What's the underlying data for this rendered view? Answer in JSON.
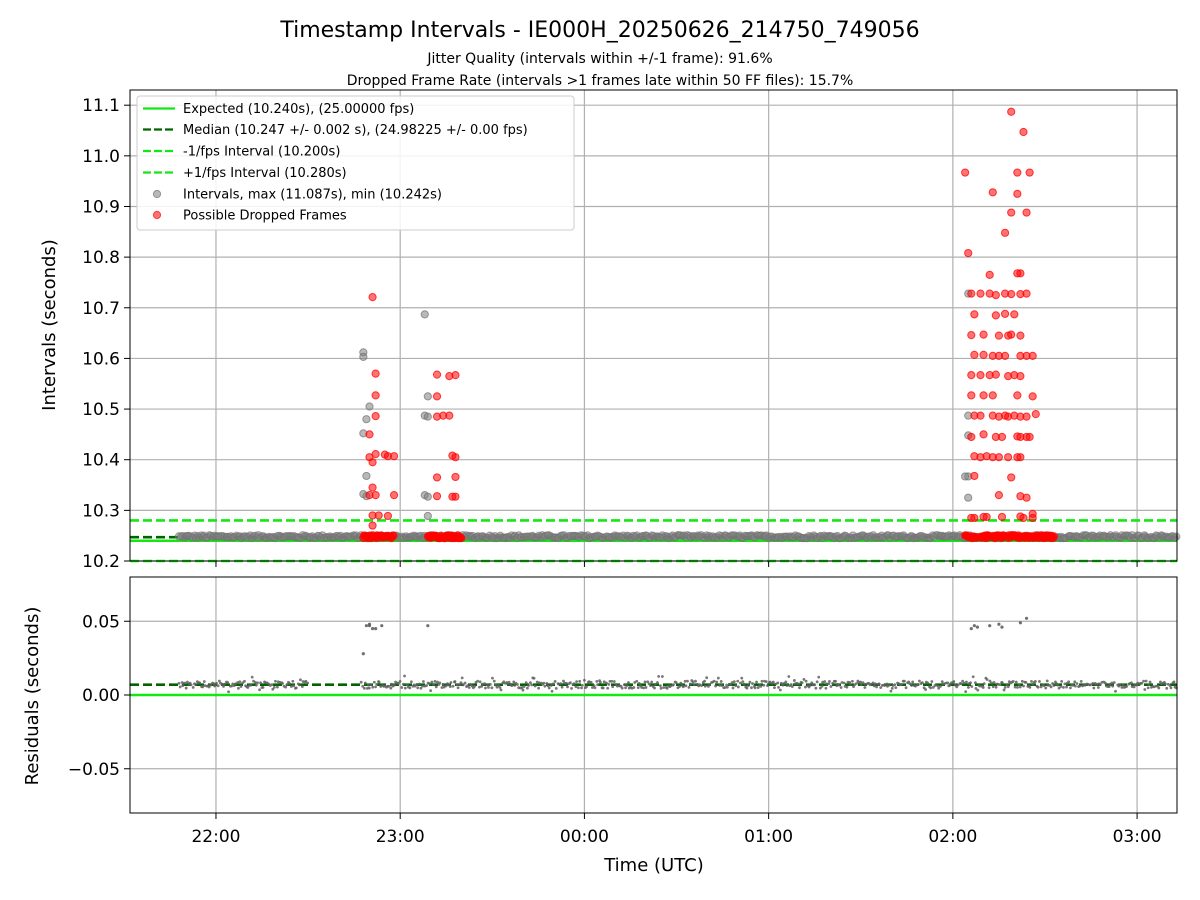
{
  "title": "Timestamp Intervals - IE000H_20250626_214750_749056",
  "subtitles": [
    "Jitter Quality (intervals within +/-1 frame): 91.6%",
    "Dropped Frame Rate (intervals >1 frames late within 50 FF files): 15.7%"
  ],
  "chart_data": [
    {
      "type": "scatter",
      "ylabel": "Intervals (seconds)",
      "ylim": [
        10.2,
        11.13
      ],
      "yticks": [
        10.2,
        10.3,
        10.4,
        10.5,
        10.6,
        10.7,
        10.8,
        10.9,
        11.0,
        11.1
      ],
      "ytick_labels": [
        "10.2",
        "10.3",
        "10.4",
        "10.5",
        "10.6",
        "10.7",
        "10.8",
        "10.9",
        "11.0",
        "11.1"
      ],
      "grid": true,
      "legend_position": "top-left",
      "reference_lines": [
        {
          "name": "Expected (10.240s), (25.00000 fps)",
          "y": 10.24,
          "style": "solid",
          "color": "#14e814"
        },
        {
          "name": "Median (10.247 +/- 0.002 s), (24.98225 +/- 0.00 fps)",
          "y": 10.247,
          "style": "dashed",
          "color": "#006400"
        },
        {
          "name": "-1/fps Interval (10.200s)",
          "y": 10.2,
          "style": "dashed",
          "color": "#14e814"
        },
        {
          "name": "+1/fps Interval (10.280s)",
          "y": 10.28,
          "style": "dashed",
          "color": "#14e814"
        }
      ],
      "series": [
        {
          "name": "Intervals, max (11.087s), min (10.242s)",
          "color": "#808080",
          "points": [
            [
              "22:48",
              10.612
            ],
            [
              "22:48",
              10.603
            ],
            [
              "22:48",
              10.452
            ],
            [
              "22:49",
              10.48
            ],
            [
              "22:49",
              10.368
            ],
            [
              "22:48",
              10.332
            ],
            [
              "22:49",
              10.328
            ],
            [
              "22:50",
              10.505
            ],
            [
              "23:08",
              10.687
            ],
            [
              "23:08",
              10.487
            ],
            [
              "23:09",
              10.485
            ],
            [
              "23:09",
              10.525
            ],
            [
              "23:08",
              10.33
            ],
            [
              "23:09",
              10.327
            ],
            [
              "23:09",
              10.289
            ],
            [
              "02:05",
              10.728
            ],
            [
              "02:05",
              10.487
            ],
            [
              "02:05",
              10.448
            ],
            [
              "02:05",
              10.367
            ],
            [
              "02:04",
              10.367
            ],
            [
              "02:05",
              10.325
            ]
          ]
        },
        {
          "name": "Possible Dropped Frames",
          "color": "#ff0000",
          "points": [
            [
              "22:51",
              10.721
            ],
            [
              "22:52",
              10.57
            ],
            [
              "22:52",
              10.527
            ],
            [
              "22:52",
              10.486
            ],
            [
              "22:50",
              10.45
            ],
            [
              "22:50",
              10.405
            ],
            [
              "22:51",
              10.395
            ],
            [
              "22:52",
              10.411
            ],
            [
              "22:55",
              10.41
            ],
            [
              "22:56",
              10.407
            ],
            [
              "22:58",
              10.407
            ],
            [
              "22:51",
              10.345
            ],
            [
              "22:50",
              10.33
            ],
            [
              "22:52",
              10.33
            ],
            [
              "22:58",
              10.33
            ],
            [
              "22:51",
              10.29
            ],
            [
              "22:53",
              10.29
            ],
            [
              "22:56",
              10.289
            ],
            [
              "22:51",
              10.27
            ],
            [
              "23:12",
              10.568
            ],
            [
              "23:16",
              10.565
            ],
            [
              "23:18",
              10.567
            ],
            [
              "23:12",
              10.525
            ],
            [
              "23:12",
              10.485
            ],
            [
              "23:14",
              10.487
            ],
            [
              "23:16",
              10.487
            ],
            [
              "23:17",
              10.408
            ],
            [
              "23:18",
              10.405
            ],
            [
              "23:12",
              10.365
            ],
            [
              "23:18",
              10.366
            ],
            [
              "23:12",
              10.328
            ],
            [
              "23:17",
              10.327
            ],
            [
              "23:18",
              10.327
            ],
            [
              "02:04",
              10.967
            ],
            [
              "02:05",
              10.808
            ],
            [
              "02:06",
              10.728
            ],
            [
              "02:07",
              10.687
            ],
            [
              "02:06",
              10.646
            ],
            [
              "02:07",
              10.607
            ],
            [
              "02:06",
              10.567
            ],
            [
              "02:06",
              10.527
            ],
            [
              "02:07",
              10.487
            ],
            [
              "02:06",
              10.445
            ],
            [
              "02:07",
              10.407
            ],
            [
              "02:07",
              10.368
            ],
            [
              "02:06",
              10.285
            ],
            [
              "02:07",
              10.285
            ],
            [
              "02:09",
              10.728
            ],
            [
              "02:10",
              10.647
            ],
            [
              "02:10",
              10.607
            ],
            [
              "02:09",
              10.567
            ],
            [
              "02:10",
              10.527
            ],
            [
              "02:09",
              10.487
            ],
            [
              "02:10",
              10.45
            ],
            [
              "02:11",
              10.407
            ],
            [
              "02:09",
              10.405
            ],
            [
              "02:10",
              10.287
            ],
            [
              "02:11",
              10.287
            ],
            [
              "02:12",
              10.765
            ],
            [
              "02:12",
              10.728
            ],
            [
              "02:13",
              10.605
            ],
            [
              "02:12",
              10.567
            ],
            [
              "02:13",
              10.527
            ],
            [
              "02:13",
              10.487
            ],
            [
              "02:13",
              10.405
            ],
            [
              "02:13",
              10.928
            ],
            [
              "02:14",
              10.725
            ],
            [
              "02:14",
              10.685
            ],
            [
              "02:15",
              10.645
            ],
            [
              "02:15",
              10.605
            ],
            [
              "02:14",
              10.568
            ],
            [
              "02:15",
              10.485
            ],
            [
              "02:14",
              10.445
            ],
            [
              "02:16",
              10.445
            ],
            [
              "02:15",
              10.405
            ],
            [
              "02:15",
              10.33
            ],
            [
              "02:16",
              10.287
            ],
            [
              "02:17",
              10.848
            ],
            [
              "02:17",
              10.728
            ],
            [
              "02:17",
              10.688
            ],
            [
              "02:18",
              10.645
            ],
            [
              "02:17",
              10.605
            ],
            [
              "02:18",
              10.565
            ],
            [
              "02:17",
              10.487
            ],
            [
              "02:18",
              10.485
            ],
            [
              "02:18",
              10.405
            ],
            [
              "02:19",
              10.365
            ],
            [
              "02:19",
              11.087
            ],
            [
              "02:19",
              10.888
            ],
            [
              "02:19",
              10.727
            ],
            [
              "02:20",
              10.687
            ],
            [
              "02:19",
              10.647
            ],
            [
              "02:20",
              10.567
            ],
            [
              "02:21",
              10.527
            ],
            [
              "02:20",
              10.487
            ],
            [
              "02:21",
              10.446
            ],
            [
              "02:21",
              10.405
            ],
            [
              "02:21",
              10.967
            ],
            [
              "02:21",
              10.925
            ],
            [
              "02:21",
              10.768
            ],
            [
              "02:22",
              10.768
            ],
            [
              "02:22",
              10.727
            ],
            [
              "02:22",
              10.645
            ],
            [
              "02:22",
              10.605
            ],
            [
              "02:22",
              10.565
            ],
            [
              "02:22",
              10.485
            ],
            [
              "02:22",
              10.445
            ],
            [
              "02:22",
              10.405
            ],
            [
              "02:22",
              10.328
            ],
            [
              "02:22",
              10.288
            ],
            [
              "02:23",
              11.047
            ],
            [
              "02:24",
              10.888
            ],
            [
              "02:24",
              10.728
            ],
            [
              "02:24",
              10.605
            ],
            [
              "02:24",
              10.485
            ],
            [
              "02:24",
              10.445
            ],
            [
              "02:24",
              10.325
            ],
            [
              "02:23",
              10.285
            ],
            [
              "02:25",
              10.967
            ],
            [
              "02:26",
              10.605
            ],
            [
              "02:26",
              10.525
            ],
            [
              "02:25",
              10.445
            ],
            [
              "02:26",
              10.285
            ],
            [
              "02:26",
              10.293
            ],
            [
              "02:27",
              10.49
            ]
          ],
          "baseline_clusters": [
            {
              "start": "22:48",
              "end": "22:58",
              "y": 10.248
            },
            {
              "start": "23:09",
              "end": "23:20",
              "y": 10.248
            },
            {
              "start": "02:04",
              "end": "02:08",
              "y": 10.248
            },
            {
              "start": "02:09",
              "end": "02:12",
              "y": 10.248
            },
            {
              "start": "02:13",
              "end": "02:17",
              "y": 10.248
            },
            {
              "start": "02:18",
              "end": "02:22",
              "y": 10.248
            },
            {
              "start": "02:22",
              "end": "02:33",
              "y": 10.248
            }
          ]
        }
      ],
      "baseline_coverage": [
        {
          "start": "21:48",
          "end": "22:48",
          "y": 10.248
        },
        {
          "start": "22:48",
          "end": "02:04",
          "y": 10.248
        },
        {
          "start": "02:04",
          "end": "03:13",
          "y": 10.248
        }
      ]
    },
    {
      "type": "scatter",
      "xlabel": "Time (UTC)",
      "ylabel": "Residuals (seconds)",
      "xlim": [
        "21:32",
        "03:13"
      ],
      "xticks": [
        "22:00",
        "23:00",
        "00:00",
        "01:00",
        "02:00",
        "03:00"
      ],
      "ylim": [
        -0.08,
        0.08
      ],
      "yticks": [
        -0.05,
        0.0,
        0.05
      ],
      "ytick_labels": [
        "−0.05",
        "0.00",
        "0.05"
      ],
      "grid": true,
      "reference_lines": [
        {
          "y": 0.0,
          "style": "solid",
          "color": "#14e814"
        },
        {
          "y": 0.007,
          "style": "dashed",
          "color": "#006400"
        }
      ],
      "series": [
        {
          "color": "#606060",
          "outliers": [
            [
              "22:48",
              0.028
            ],
            [
              "22:49",
              0.047
            ],
            [
              "22:50",
              0.048
            ],
            [
              "22:50",
              0.047
            ],
            [
              "22:51",
              0.045
            ],
            [
              "22:52",
              0.045
            ],
            [
              "22:54",
              0.047
            ],
            [
              "23:09",
              0.047
            ],
            [
              "02:06",
              0.045
            ],
            [
              "02:07",
              0.047
            ],
            [
              "02:08",
              0.046
            ],
            [
              "02:12",
              0.047
            ],
            [
              "02:15",
              0.048
            ],
            [
              "02:16",
              0.046
            ],
            [
              "02:22",
              0.049
            ],
            [
              "02:24",
              0.052
            ]
          ],
          "band": {
            "start": "21:48",
            "end": "03:13",
            "y_min": 0.002,
            "y_max": 0.013,
            "center": 0.007,
            "gap": [
              "22:30",
              "22:47"
            ]
          }
        }
      ]
    }
  ]
}
